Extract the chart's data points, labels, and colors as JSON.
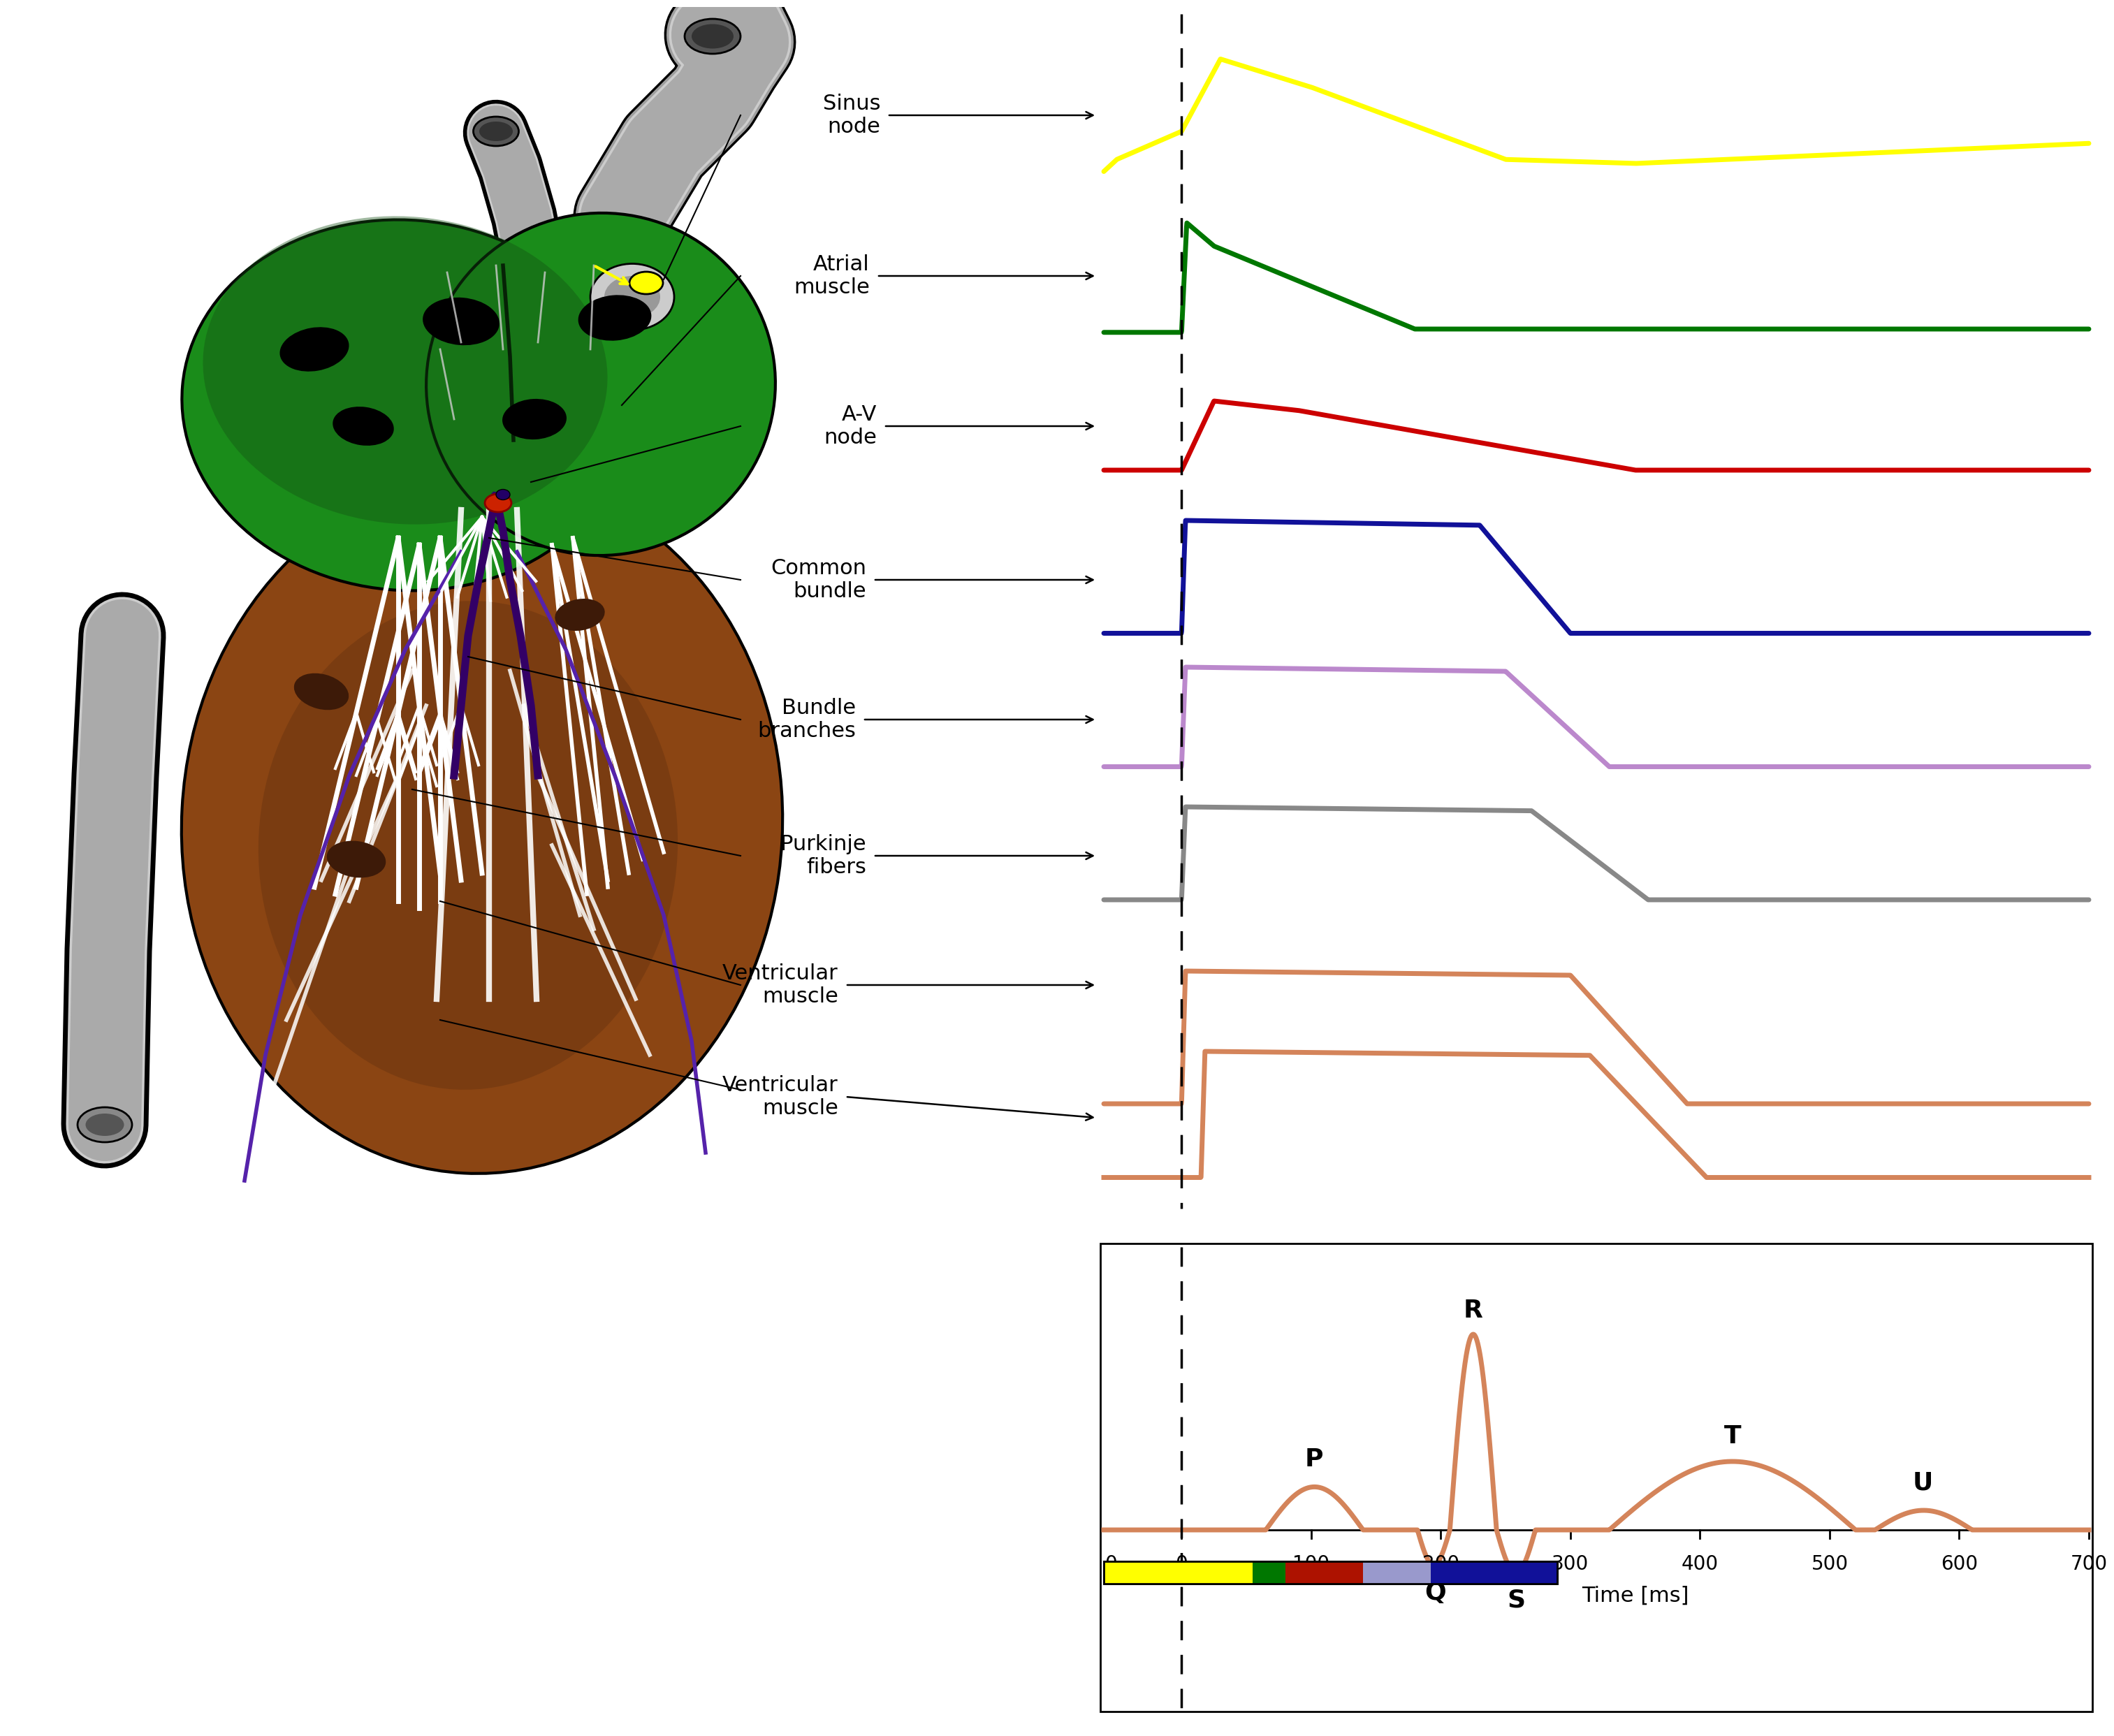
{
  "colors": {
    "sinus": "#FFFF00",
    "atrial": "#007700",
    "av": "#CC0000",
    "common": "#111199",
    "bundle": "#bb88cc",
    "purkinje": "#888888",
    "ventricular": "#d4845a",
    "ecg": "#d4845a"
  },
  "label_names": [
    "Sinus\nnode",
    "Atrial\nmuscle",
    "A-V\nnode",
    "Common\nbundle",
    "Bundle\nbranches",
    "Purkinje\nfibers",
    "Ventricular\nmuscle"
  ],
  "time_axis_label": "Time [ms]",
  "time_ticks": [
    0,
    100,
    200,
    300,
    400,
    500,
    600,
    700
  ],
  "bg_color": "#ffffff",
  "heart_green": "#1a8c1a",
  "heart_brown": "#8B4513",
  "heart_gray": "#999999",
  "heart_darkgreen": "#145214"
}
